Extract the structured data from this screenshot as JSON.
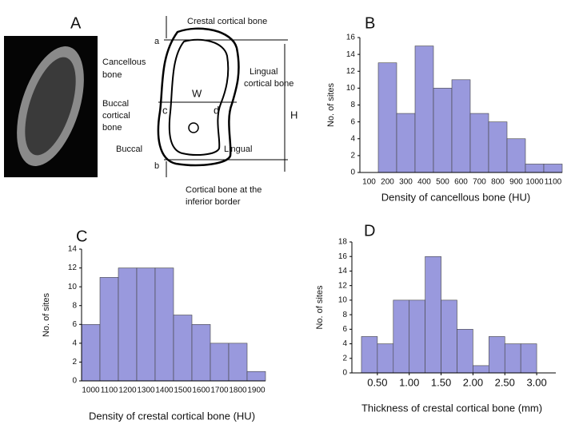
{
  "figure_a": {
    "panel": "A",
    "labels": {
      "crestal": "Crestal cortical bone",
      "a": "a",
      "cancellous": [
        "Cancellous",
        "bone"
      ],
      "lingual_cortical": [
        "Lingual",
        "cortical bone"
      ],
      "w": "W",
      "buccal_cortical": [
        "Buccal",
        "cortical",
        "bone"
      ],
      "c": "c",
      "d": "d",
      "h": "H",
      "buccal": "Buccal",
      "lingual": "Lingual",
      "b": "b",
      "inferior": [
        "Cortical bone at the",
        "inferior border"
      ]
    }
  },
  "chart_data": [
    {
      "type": "bar",
      "panel": "B",
      "x_label": "Density of cancellous bone (HU)",
      "y_label": "No. of sites",
      "categories": [
        "100",
        "200",
        "300",
        "400",
        "500",
        "600",
        "700",
        "800",
        "900",
        "1000",
        "1100"
      ],
      "values": [
        0,
        13,
        7,
        15,
        10,
        11,
        7,
        6,
        4,
        1,
        1
      ],
      "color": "#9999dd",
      "ylim": [
        0,
        16
      ],
      "yticks": [
        0,
        2,
        4,
        6,
        8,
        10,
        12,
        14,
        16
      ]
    },
    {
      "type": "bar",
      "panel": "C",
      "x_label": "Density of crestal cortical bone (HU)",
      "y_label": "No. of sites",
      "categories": [
        "1000",
        "1100",
        "1200",
        "1300",
        "1400",
        "1500",
        "1600",
        "1700",
        "1800",
        "1900"
      ],
      "values": [
        6,
        11,
        12,
        12,
        12,
        7,
        6,
        4,
        4,
        1
      ],
      "color": "#9999dd",
      "ylim": [
        0,
        14
      ],
      "yticks": [
        0,
        2,
        4,
        6,
        8,
        10,
        12,
        14
      ]
    },
    {
      "type": "histogram",
      "panel": "D",
      "x_label": "Thickness of crestal cortical bone (mm)",
      "y_label": "No. of sites",
      "bins": [
        0.25,
        0.5,
        0.75,
        1.0,
        1.25,
        1.5,
        1.75,
        2.0,
        2.25,
        2.5,
        2.75,
        3.0
      ],
      "values": [
        5,
        4,
        10,
        10,
        16,
        10,
        6,
        1,
        5,
        4,
        4
      ],
      "color": "#9999dd",
      "xlim": [
        0.1,
        3.3
      ],
      "xticks": [
        {
          "value": 0.5,
          "label": "0.50"
        },
        {
          "value": 1.0,
          "label": "1.00"
        },
        {
          "value": 1.5,
          "label": "1.50"
        },
        {
          "value": 2.0,
          "label": "2.00"
        },
        {
          "value": 2.5,
          "label": "2.50"
        },
        {
          "value": 3.0,
          "label": "3.00"
        }
      ],
      "ylim": [
        0,
        18
      ],
      "yticks": [
        0,
        2,
        4,
        6,
        8,
        10,
        12,
        14,
        16,
        18
      ]
    }
  ]
}
